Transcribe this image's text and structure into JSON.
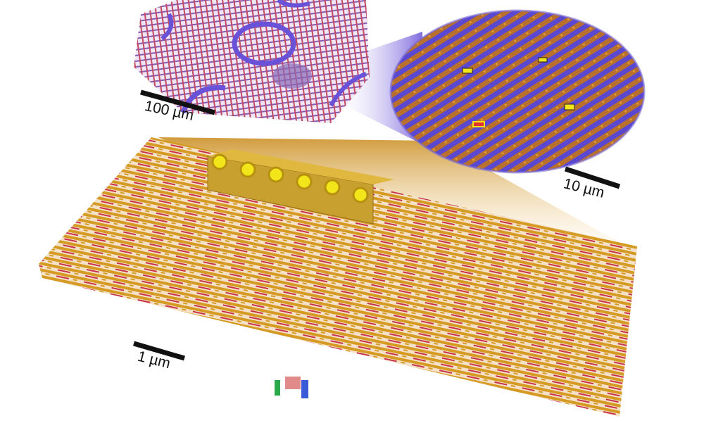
{
  "scale_bars": {
    "top_left": "100 µm",
    "top_right": "10 µm",
    "bottom": "1 µm"
  },
  "colors": {
    "gold": "#d9a21e",
    "purple": "#6a52d8",
    "red": "#c8324a",
    "yellow": "#f2e61a"
  }
}
